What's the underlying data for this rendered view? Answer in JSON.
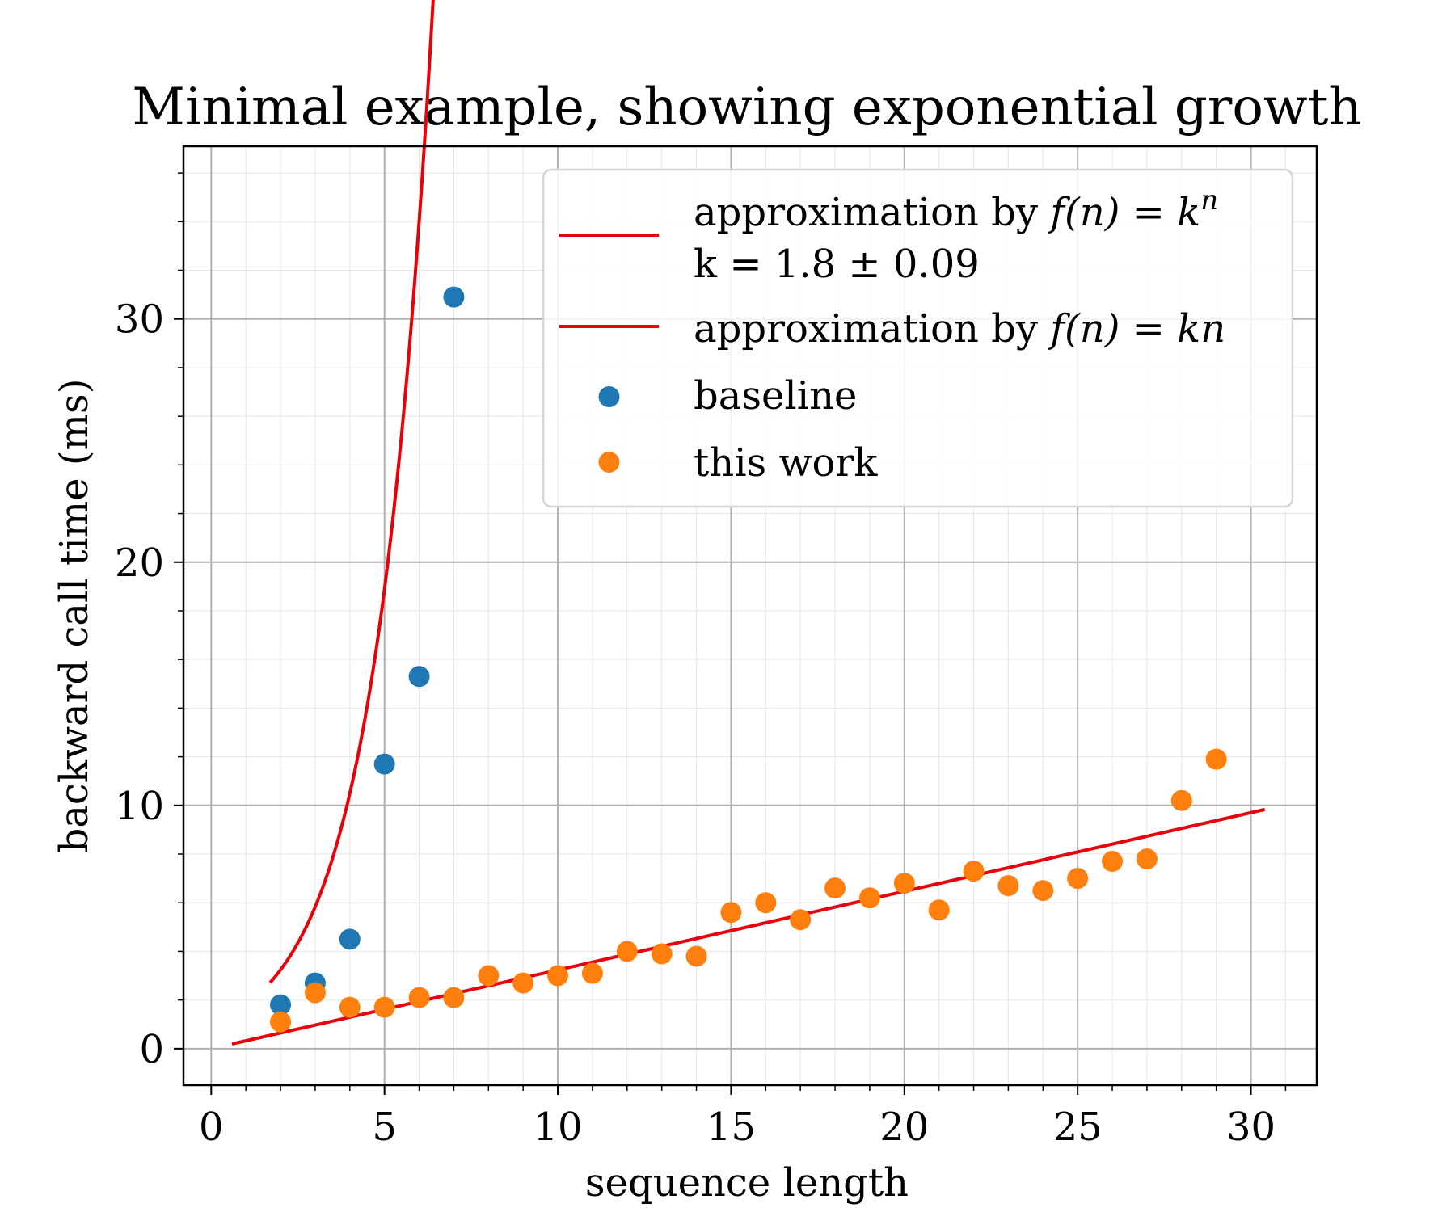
{
  "chart_data": {
    "type": "scatter",
    "title": "Minimal example, showing exponential growth",
    "xlabel": "sequence length",
    "ylabel": "backward call time (ms)",
    "xlim": [
      -0.8,
      31.9
    ],
    "ylim": [
      -1.5,
      37.1
    ],
    "x_ticks": [
      0,
      5,
      10,
      15,
      20,
      25,
      30
    ],
    "y_ticks": [
      0,
      10,
      20,
      30
    ],
    "x_minor_step": 1,
    "y_minor_step": 2,
    "grid": true,
    "legend_position": "top-right",
    "series": [
      {
        "name": "baseline",
        "kind": "scatter",
        "color": "#1f77b4",
        "x": [
          2,
          3,
          4,
          5,
          6,
          7
        ],
        "y": [
          1.8,
          2.7,
          4.5,
          11.7,
          15.3,
          30.9
        ]
      },
      {
        "name": "this work",
        "kind": "scatter",
        "color": "#ff7f0e",
        "x": [
          2,
          3,
          4,
          5,
          6,
          7,
          8,
          9,
          10,
          11,
          12,
          13,
          14,
          15,
          16,
          17,
          18,
          19,
          20,
          21,
          22,
          23,
          24,
          25,
          26,
          27,
          28,
          29
        ],
        "y": [
          1.1,
          2.3,
          1.7,
          1.7,
          2.1,
          2.1,
          3.0,
          2.7,
          3.0,
          3.1,
          4.0,
          3.9,
          3.8,
          5.6,
          6.0,
          5.3,
          6.6,
          6.2,
          6.8,
          5.7,
          7.3,
          6.7,
          6.5,
          7.0,
          7.7,
          7.8,
          10.2,
          11.9
        ]
      },
      {
        "name": "approximation by f(n) = k^n",
        "kind": "line",
        "model": "exponential",
        "k": 1.8,
        "color": "#e8000b",
        "x_range": [
          1.7,
          7.25
        ]
      },
      {
        "name": "approximation by f(n) = kn",
        "kind": "line",
        "model": "linear",
        "slope": 0.3234,
        "color": "#e8000b",
        "x_range": [
          0.6,
          30.4
        ]
      }
    ],
    "legend": [
      {
        "kind": "line",
        "color": "#e8000b",
        "pre": "approximation by ",
        "math": "f(n) = k",
        "sup": "n",
        "line2": "k = 1.8 ± 0.09"
      },
      {
        "kind": "line",
        "color": "#e8000b",
        "pre": "approximation by ",
        "math": "f(n) = kn"
      },
      {
        "kind": "marker",
        "color": "#1f77b4",
        "pre": "baseline"
      },
      {
        "kind": "marker",
        "color": "#ff7f0e",
        "pre": "this work"
      }
    ]
  }
}
